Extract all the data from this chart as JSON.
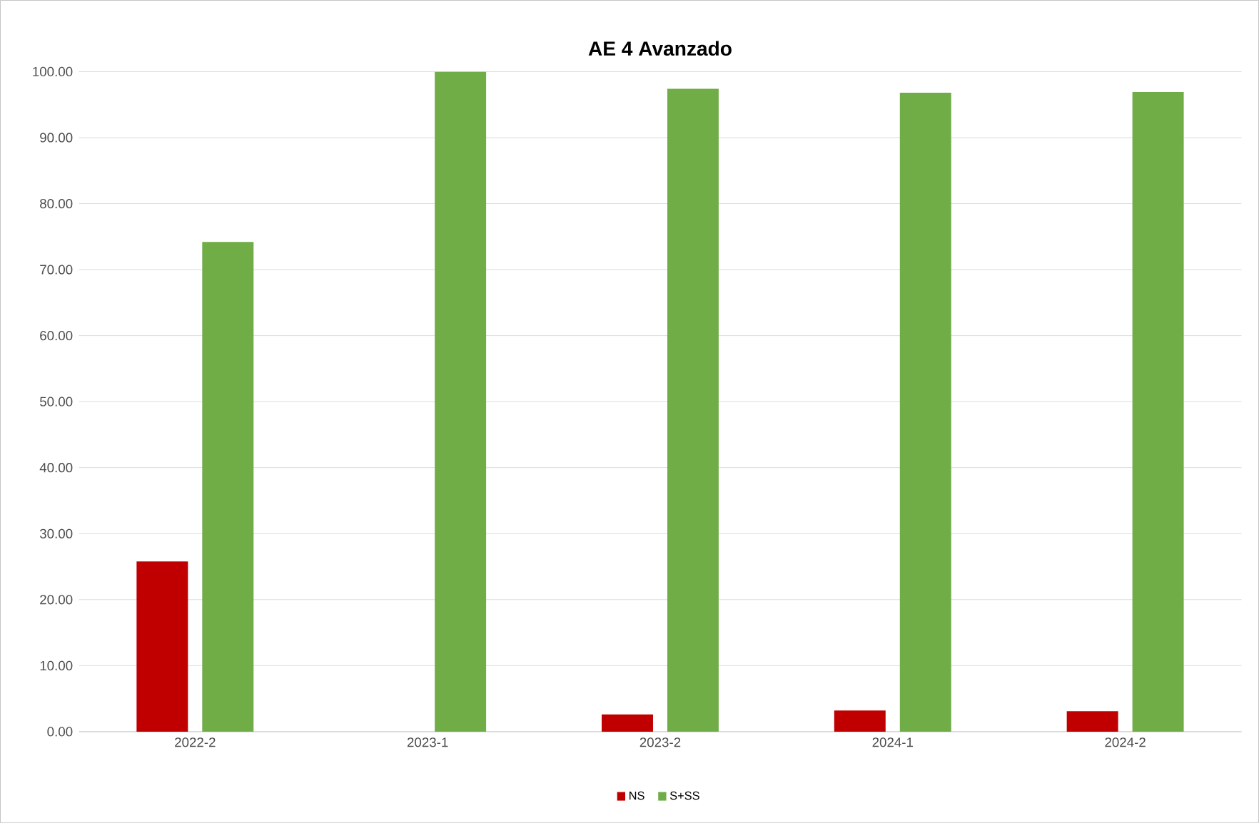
{
  "chart_data": {
    "type": "bar",
    "title": "AE 4 Avanzado",
    "categories": [
      "2022-2",
      "2023-1",
      "2023-2",
      "2024-1",
      "2024-2"
    ],
    "series": [
      {
        "name": "NS",
        "color": "#c00000",
        "values": [
          25.8,
          0,
          2.6,
          3.2,
          3.1
        ]
      },
      {
        "name": "S+SS",
        "color": "#70ad47",
        "values": [
          74.2,
          100,
          97.4,
          96.8,
          96.9
        ]
      }
    ],
    "ylim": [
      0,
      100
    ],
    "yticks": [
      {
        "value": 0,
        "label": "0.00"
      },
      {
        "value": 10,
        "label": "10.00"
      },
      {
        "value": 20,
        "label": "20.00"
      },
      {
        "value": 30,
        "label": "30.00"
      },
      {
        "value": 40,
        "label": "40.00"
      },
      {
        "value": 50,
        "label": "50.00"
      },
      {
        "value": 60,
        "label": "60.00"
      },
      {
        "value": 70,
        "label": "70.00"
      },
      {
        "value": 80,
        "label": "80.00"
      },
      {
        "value": 90,
        "label": "90.00"
      },
      {
        "value": 100,
        "label": "100.00"
      }
    ],
    "grid": "y",
    "legend": "bottom"
  }
}
